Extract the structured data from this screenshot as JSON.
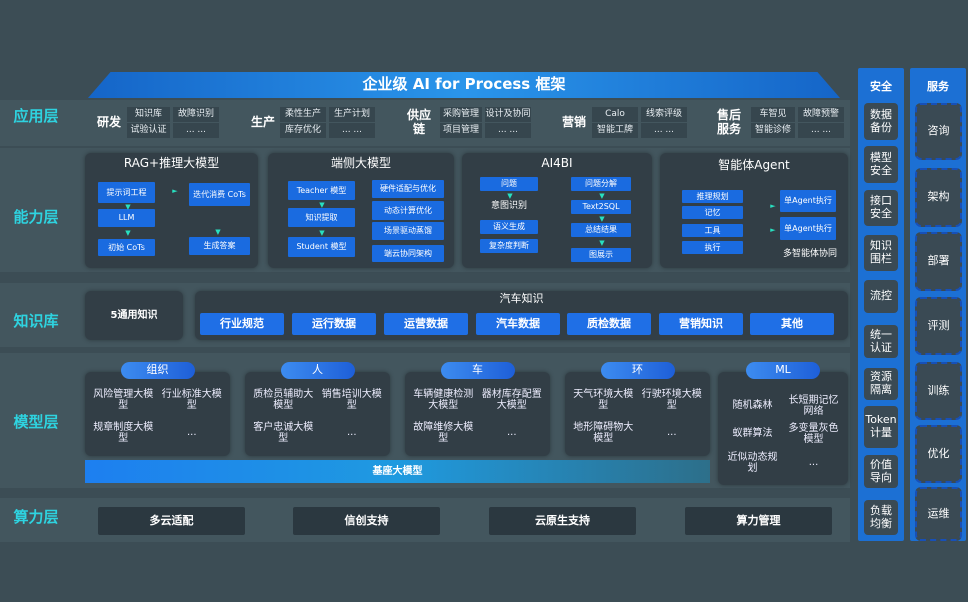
{
  "title": "企业级 AI for Process 框架",
  "layers": {
    "app": "应用层",
    "capability": "能力层",
    "knowledge": "知识库",
    "model": "模型层",
    "compute": "算力层"
  },
  "app": [
    {
      "label": "研发",
      "cells": [
        "知识库",
        "故障识别",
        "试验认证",
        "... ..."
      ]
    },
    {
      "label": "生产",
      "cells": [
        "柔性生产",
        "生产计划",
        "库存优化",
        "... ..."
      ]
    },
    {
      "label": "供应链",
      "cells": [
        "采购管理",
        "设计及协同",
        "项目管理",
        "... ..."
      ]
    },
    {
      "label": "营销",
      "cells": [
        "Calo",
        "线索评级",
        "智能工牌",
        "... ..."
      ]
    },
    {
      "label": "售后服务",
      "cells": [
        "车智见",
        "故障预警",
        "智能诊修",
        "... ..."
      ]
    }
  ],
  "capability": {
    "rag": {
      "title": "RAG+推理大模型",
      "items": [
        "提示词工程",
        "LLM",
        "初始 CoTs",
        "迭代消费 CoTs",
        "生成答案"
      ]
    },
    "edge": {
      "title": "端侧大模型",
      "items": [
        "Teacher 模型",
        "知识提取",
        "Student 模型",
        "硬件适配与优化",
        "动态计算优化",
        "场景驱动蒸馏",
        "端云协同架构"
      ]
    },
    "ai4bi": {
      "title": "AI4BI",
      "items": [
        "问题",
        "意图识别",
        "语义生成",
        "复杂度判断",
        "问题分解",
        "Text2SQL",
        "总结结果",
        "图展示"
      ]
    },
    "agent": {
      "title": "智能体Agent",
      "items": [
        "推理规划",
        "记忆",
        "工具",
        "执行",
        "单Agent执行",
        "单Agent执行",
        "多智能体协同"
      ]
    }
  },
  "knowledge": {
    "general": "5通用知识",
    "auto_title": "汽车知识",
    "items": [
      "行业规范",
      "运行数据",
      "运营数据",
      "汽车数据",
      "质检数据",
      "营销知识",
      "其他"
    ]
  },
  "model": {
    "groups": [
      {
        "label": "组织",
        "items": [
          "风险管理大模型",
          "行业标准大模型",
          "规章制度大模型",
          "..."
        ]
      },
      {
        "label": "人",
        "items": [
          "质检员辅助大模型",
          "销售培训大模型",
          "客户忠诚大模型",
          "..."
        ]
      },
      {
        "label": "车",
        "items": [
          "车辆健康检测大模型",
          "器材库存配置大模型",
          "故障维修大模型",
          "..."
        ]
      },
      {
        "label": "环",
        "items": [
          "天气环境大模型",
          "行驶环境大模型",
          "地形障碍物大模型",
          "..."
        ]
      },
      {
        "label": "ML",
        "items": [
          "随机森林",
          "长短期记忆网络",
          "蚁群算法",
          "多变量灰色模型",
          "近似动态规划",
          "..."
        ]
      }
    ],
    "base": "基座大模型"
  },
  "compute": [
    "多云适配",
    "信创支持",
    "云原生支持",
    "算力管理"
  ],
  "security": {
    "title": "安全",
    "items": [
      "数据备份",
      "模型安全",
      "接口安全",
      "知识围栏",
      "流控",
      "统一认证",
      "资源隔离",
      "Token计量",
      "价值导向",
      "负载均衡"
    ]
  },
  "service": {
    "title": "服务",
    "items": [
      "咨询",
      "架构",
      "部署",
      "评测",
      "训练",
      "优化",
      "运维"
    ]
  },
  "colors": {
    "background": "#3c4d55",
    "accent": "#1a6be0",
    "layer_label": "#2ed3e0"
  }
}
